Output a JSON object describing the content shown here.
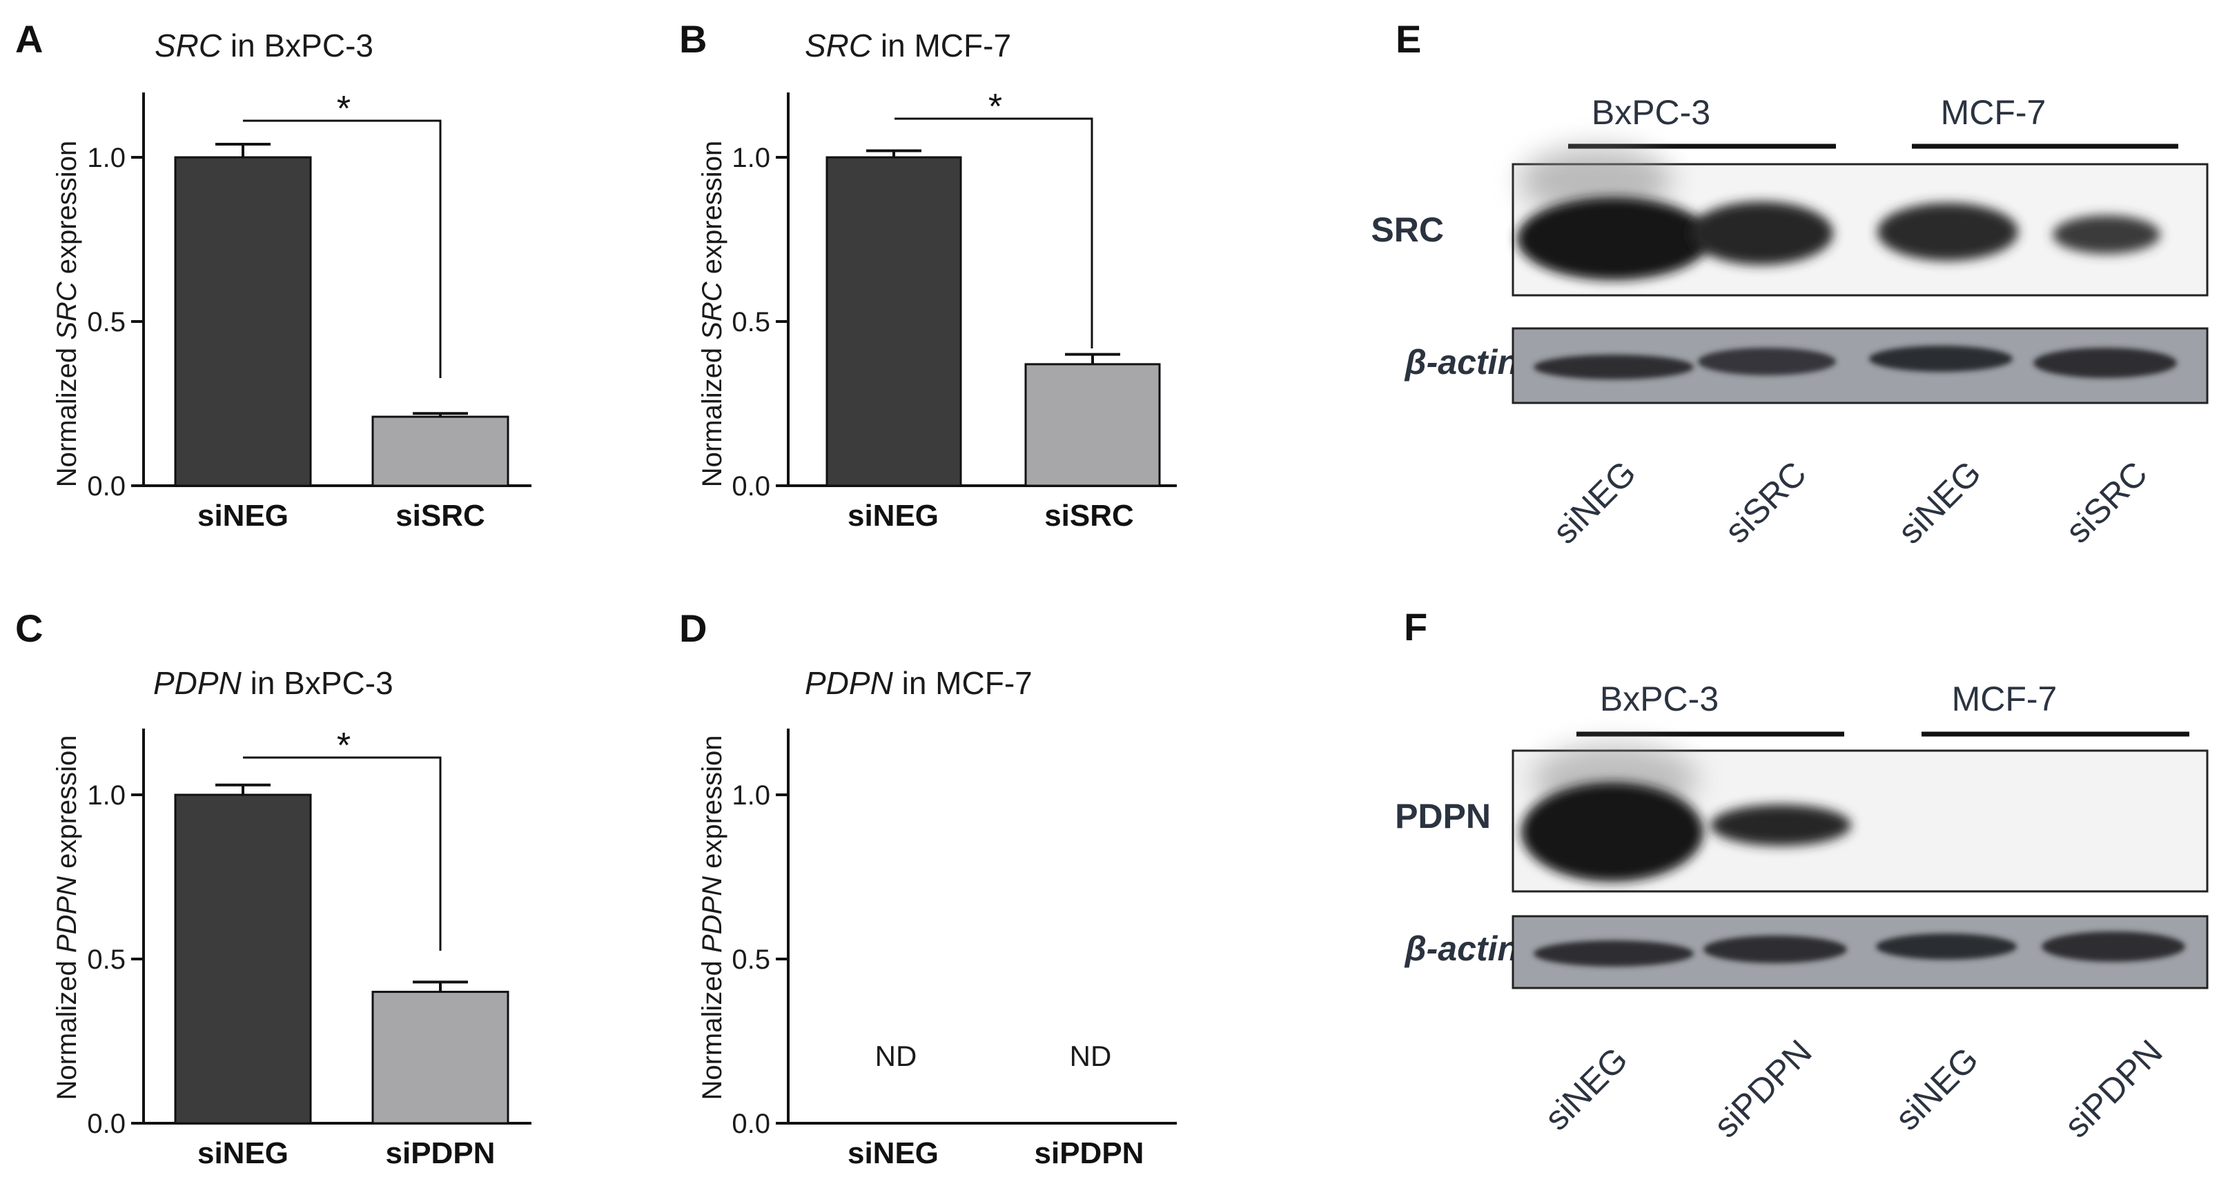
{
  "chart_data": [
    {
      "panel": "A",
      "type": "bar",
      "title_italic": "SRC",
      "title_rest": " in BxPC-3",
      "ylabel_pre": "Normalized ",
      "ylabel_gene": "SRC",
      "ylabel_post": " expression",
      "categories": [
        "siNEG",
        "siSRC"
      ],
      "values": [
        1.0,
        0.21
      ],
      "errors": [
        0.04,
        0.01
      ],
      "colors": [
        "#3c3c3c",
        "#a7a7a9"
      ],
      "ylim": [
        0,
        1.2
      ],
      "yticks": [
        "0.0",
        "0.5",
        "1.0"
      ],
      "significance": "*",
      "nd_labels": []
    },
    {
      "panel": "B",
      "type": "bar",
      "title_italic": "SRC",
      "title_rest": " in MCF-7",
      "ylabel_pre": "Normalized ",
      "ylabel_gene": "SRC",
      "ylabel_post": " expression",
      "categories": [
        "siNEG",
        "siSRC"
      ],
      "values": [
        1.0,
        0.37
      ],
      "errors": [
        0.02,
        0.03
      ],
      "colors": [
        "#3c3c3c",
        "#a7a7a9"
      ],
      "ylim": [
        0,
        1.2
      ],
      "yticks": [
        "0.0",
        "0.5",
        "1.0"
      ],
      "significance": "*",
      "nd_labels": []
    },
    {
      "panel": "C",
      "type": "bar",
      "title_italic": "PDPN",
      "title_rest": " in BxPC-3",
      "ylabel_pre": "Normalized ",
      "ylabel_gene": "PDPN",
      "ylabel_post": " expression",
      "categories": [
        "siNEG",
        "siPDPN"
      ],
      "values": [
        1.0,
        0.4
      ],
      "errors": [
        0.03,
        0.03
      ],
      "colors": [
        "#3c3c3c",
        "#a7a7a9"
      ],
      "ylim": [
        0,
        1.2
      ],
      "yticks": [
        "0.0",
        "0.5",
        "1.0"
      ],
      "significance": "*",
      "nd_labels": []
    },
    {
      "panel": "D",
      "type": "bar",
      "title_italic": "PDPN",
      "title_rest": " in MCF-7",
      "ylabel_pre": "Normalized ",
      "ylabel_gene": "PDPN",
      "ylabel_post": " expression",
      "categories": [
        "siNEG",
        "siPDPN"
      ],
      "values": [
        null,
        null
      ],
      "errors": [
        null,
        null
      ],
      "colors": [
        "#3c3c3c",
        "#a7a7a9"
      ],
      "ylim": [
        0,
        1.2
      ],
      "yticks": [
        "0.0",
        "0.5",
        "1.0"
      ],
      "significance": "",
      "nd_labels": [
        "ND",
        "ND"
      ]
    }
  ],
  "blots": [
    {
      "panel": "E",
      "cell_lines": [
        "BxPC-3",
        "MCF-7"
      ],
      "protein": "SRC",
      "loading_control": "β-actin",
      "lanes": [
        "siNEG",
        "siSRC",
        "siNEG",
        "siSRC"
      ]
    },
    {
      "panel": "F",
      "cell_lines": [
        "BxPC-3",
        "MCF-7"
      ],
      "protein": "PDPN",
      "loading_control": "β-actin",
      "lanes": [
        "siNEG",
        "siPDPN",
        "siNEG",
        "siPDPN"
      ]
    }
  ]
}
